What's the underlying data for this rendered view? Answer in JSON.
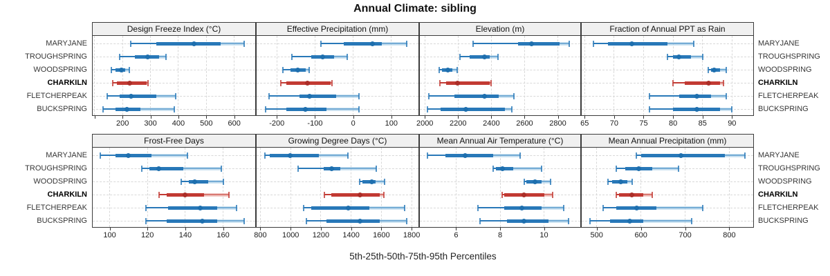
{
  "title": "Annual Climate: sibling",
  "caption": "5th-25th-50th-75th-95th Percentiles",
  "stations": [
    "MARYJANE",
    "TROUGHSPRING",
    "WOODSPRING",
    "CHARKILN",
    "FLETCHERPEAK",
    "BUCKSPRING"
  ],
  "highlight_station": "CHARKILN",
  "colors": {
    "blue_main": "#2878b8",
    "blue_light": "#a9cfe8",
    "blue_dot": "#1e6fae",
    "red_main": "#c23a33",
    "red_light": "#e7a59e",
    "red_dot": "#ab2e28",
    "grid": "#d8d8d8",
    "border": "#3b3b3b",
    "header_bg": "#f0f0f0"
  },
  "chart_data": {
    "type": "dot-interval-trellis",
    "percentiles": [
      5,
      25,
      50,
      75,
      95
    ],
    "percentile_caption": "5th-25th-50th-75th-95th Percentiles",
    "grid": "dashed",
    "layout": "2 rows x 4 columns, shared station rows, per-panel x scales",
    "panels": [
      {
        "title": "Design Freeze Index (°C)",
        "row": 0,
        "col": 0,
        "xlim": [
          93,
          675
        ],
        "ticks": [
          100,
          200,
          300,
          400,
          500,
          600
        ],
        "tick_labels": [
          "",
          "200",
          "300",
          "400",
          "500",
          "600"
        ],
        "series": [
          {
            "station": "MARYJANE",
            "values": [
              230,
              320,
              455,
              550,
              635
            ]
          },
          {
            "station": "TROUGHSPRING",
            "values": [
              190,
              245,
              290,
              330,
              355
            ]
          },
          {
            "station": "WOODSPRING",
            "values": [
              160,
              175,
              195,
              210,
              225
            ]
          },
          {
            "station": "CHARKILN",
            "values": [
              165,
              180,
              225,
              285,
              290
            ]
          },
          {
            "station": "FLETCHERPEAK",
            "values": [
              145,
              190,
              230,
              320,
              390
            ]
          },
          {
            "station": "BUCKSPRING",
            "values": [
              130,
              175,
              215,
              265,
              385
            ]
          }
        ]
      },
      {
        "title": "Effective Precipitation (mm)",
        "row": 0,
        "col": 1,
        "xlim": [
          -253,
          171
        ],
        "ticks": [
          -200,
          -100,
          0,
          100
        ],
        "tick_labels": [
          "-200",
          "-100",
          "0",
          "100"
        ],
        "series": [
          {
            "station": "MARYJANE",
            "values": [
              -85,
              -25,
              50,
              75,
              140
            ]
          },
          {
            "station": "TROUGHSPRING",
            "values": [
              -160,
              -110,
              -80,
              -50,
              -15
            ]
          },
          {
            "station": "WOODSPRING",
            "values": [
              -185,
              -165,
              -145,
              -125,
              -115
            ]
          },
          {
            "station": "CHARKILN",
            "values": [
              -190,
              -175,
              -120,
              -60,
              -55
            ]
          },
          {
            "station": "FLETCHERPEAK",
            "values": [
              -220,
              -140,
              -115,
              -45,
              15
            ]
          },
          {
            "station": "BUCKSPRING",
            "values": [
              -230,
              -175,
              -125,
              -70,
              15
            ]
          }
        ]
      },
      {
        "title": "Elevation (m)",
        "row": 0,
        "col": 2,
        "xlim": [
          1970,
          2935
        ],
        "ticks": [
          2000,
          2200,
          2400,
          2600,
          2800
        ],
        "tick_labels": [
          "2000",
          "2200",
          "2400",
          "2600",
          "2800"
        ],
        "series": [
          {
            "station": "MARYJANE",
            "values": [
              2290,
              2560,
              2640,
              2810,
              2870
            ]
          },
          {
            "station": "TROUGHSPRING",
            "values": [
              2210,
              2270,
              2360,
              2390,
              2440
            ]
          },
          {
            "station": "WOODSPRING",
            "values": [
              2085,
              2105,
              2140,
              2165,
              2195
            ]
          },
          {
            "station": "CHARKILN",
            "values": [
              2090,
              2130,
              2195,
              2390,
              2400
            ]
          },
          {
            "station": "FLETCHERPEAK",
            "values": [
              2025,
              2180,
              2360,
              2445,
              2535
            ]
          },
          {
            "station": "BUCKSPRING",
            "values": [
              2015,
              2095,
              2245,
              2480,
              2525
            ]
          }
        ]
      },
      {
        "title": "Fraction of Annual PPT as Rain",
        "row": 0,
        "col": 3,
        "xlim": [
          64.5,
          93.6
        ],
        "ticks": [
          65,
          70,
          75,
          80,
          85,
          90
        ],
        "tick_labels": [
          "65",
          "70",
          "75",
          "80",
          "85",
          "90"
        ],
        "series": [
          {
            "station": "MARYJANE",
            "values": [
              66.5,
              69,
              73,
              79,
              83.5
            ]
          },
          {
            "station": "TROUGHSPRING",
            "values": [
              79,
              80,
              81,
              83,
              85
            ]
          },
          {
            "station": "WOODSPRING",
            "values": [
              86,
              86.5,
              87,
              88,
              89
            ]
          },
          {
            "station": "CHARKILN",
            "values": [
              80,
              82,
              86,
              88,
              88.5
            ]
          },
          {
            "station": "FLETCHERPEAK",
            "values": [
              76,
              81,
              84,
              86.5,
              89
            ]
          },
          {
            "station": "BUCKSPRING",
            "values": [
              76,
              80,
              84,
              88,
              90
            ]
          }
        ]
      },
      {
        "title": "Frost-Free Days",
        "row": 1,
        "col": 0,
        "xlim": [
          91,
          177
        ],
        "ticks": [
          100,
          120,
          140,
          160
        ],
        "tick_labels": [
          "100",
          "120",
          "140",
          "160"
        ],
        "series": [
          {
            "station": "MARYJANE",
            "values": [
              95,
              103,
              110,
              122,
              141
            ]
          },
          {
            "station": "TROUGHSPRING",
            "values": [
              117,
              121,
              126,
              139,
              159
            ]
          },
          {
            "station": "WOODSPRING",
            "values": [
              138,
              142,
              145,
              152,
              160
            ]
          },
          {
            "station": "CHARKILN",
            "values": [
              126,
              130,
              140,
              150,
              163
            ]
          },
          {
            "station": "FLETCHERPEAK",
            "values": [
              119,
              131,
              148,
              157,
              167
            ]
          },
          {
            "station": "BUCKSPRING",
            "values": [
              119,
              130,
              149,
              157,
              171
            ]
          }
        ]
      },
      {
        "title": "Growing Degree Days (°C)",
        "row": 1,
        "col": 1,
        "xlim": [
          775,
          1845
        ],
        "ticks": [
          800,
          1000,
          1200,
          1400,
          1600,
          1800
        ],
        "tick_labels": [
          "800",
          "1000",
          "1200",
          "1400",
          "1600",
          "1800"
        ],
        "series": [
          {
            "station": "MARYJANE",
            "values": [
              830,
              860,
              995,
              1185,
              1380
            ]
          },
          {
            "station": "TROUGHSPRING",
            "values": [
              1050,
              1220,
              1270,
              1330,
              1565
            ]
          },
          {
            "station": "WOODSPRING",
            "values": [
              1455,
              1475,
              1535,
              1560,
              1620
            ]
          },
          {
            "station": "CHARKILN",
            "values": [
              1225,
              1270,
              1460,
              1590,
              1615
            ]
          },
          {
            "station": "FLETCHERPEAK",
            "values": [
              1085,
              1135,
              1380,
              1520,
              1755
            ]
          },
          {
            "station": "BUCKSPRING",
            "values": [
              1105,
              1235,
              1460,
              1590,
              1765
            ]
          }
        ]
      },
      {
        "title": "Mean Annual Air Temperature (°C)",
        "row": 1,
        "col": 2,
        "xlim": [
          4.35,
          11.65
        ],
        "ticks": [
          6,
          8,
          10
        ],
        "tick_labels": [
          "6",
          "8",
          "10"
        ],
        "series": [
          {
            "station": "MARYJANE",
            "values": [
              4.7,
              5.5,
              6.4,
              7.7,
              8.9
            ]
          },
          {
            "station": "TROUGHSPRING",
            "values": [
              7.7,
              7.8,
              8.1,
              8.6,
              9.9
            ]
          },
          {
            "station": "WOODSPRING",
            "values": [
              9.1,
              9.2,
              9.6,
              9.9,
              10.3
            ]
          },
          {
            "station": "CHARKILN",
            "values": [
              8.1,
              8.2,
              9.1,
              10.0,
              10.4
            ]
          },
          {
            "station": "FLETCHERPEAK",
            "values": [
              7.0,
              8.2,
              9.0,
              9.9,
              10.9
            ]
          },
          {
            "station": "BUCKSPRING",
            "values": [
              7.1,
              8.3,
              9.1,
              10.2,
              11.1
            ]
          }
        ]
      },
      {
        "title": "Mean Annual Precipitation (mm)",
        "row": 1,
        "col": 3,
        "xlim": [
          466,
          854
        ],
        "ticks": [
          500,
          600,
          700,
          800
        ],
        "tick_labels": [
          "500",
          "600",
          "700",
          "800"
        ],
        "series": [
          {
            "station": "MARYJANE",
            "values": [
              590,
              600,
              690,
              790,
              835
            ]
          },
          {
            "station": "TROUGHSPRING",
            "values": [
              545,
              565,
              595,
              625,
              685
            ]
          },
          {
            "station": "WOODSPRING",
            "values": [
              525,
              535,
              555,
              570,
              580
            ]
          },
          {
            "station": "CHARKILN",
            "values": [
              545,
              550,
              580,
              605,
              625
            ]
          },
          {
            "station": "FLETCHERPEAK",
            "values": [
              515,
              545,
              590,
              635,
              740
            ]
          },
          {
            "station": "BUCKSPRING",
            "values": [
              485,
              530,
              575,
              605,
              715
            ]
          }
        ]
      }
    ]
  }
}
